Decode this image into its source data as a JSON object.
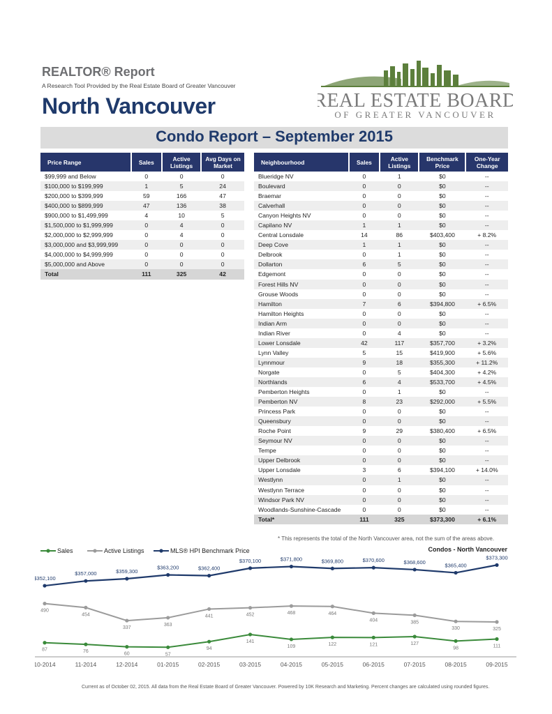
{
  "header": {
    "report_title": "REALTOR® Report",
    "report_subtitle": "A Research Tool Provided by the Real Estate Board of Greater Vancouver",
    "area": "North Vancouver",
    "banner": "Condo Report – September 2015",
    "logo_line1": "REAL ESTATE BOARD",
    "logo_line2": "OF GREATER VANCOUVER"
  },
  "colors": {
    "navy": "#1f3a6b",
    "header_bg": "#27366b",
    "green": "#3a8a3a",
    "gray": "#9b9b9b"
  },
  "price_table": {
    "headers": [
      "Price Range",
      "Sales",
      "Active Listings",
      "Avg Days on Market"
    ],
    "rows": [
      [
        "$99,999 and Below",
        "0",
        "0",
        "0"
      ],
      [
        "$100,000 to $199,999",
        "1",
        "5",
        "24"
      ],
      [
        "$200,000 to $399,999",
        "59",
        "166",
        "47"
      ],
      [
        "$400,000 to $899,999",
        "47",
        "136",
        "38"
      ],
      [
        "$900,000 to $1,499,999",
        "4",
        "10",
        "5"
      ],
      [
        "$1,500,000 to $1,999,999",
        "0",
        "4",
        "0"
      ],
      [
        "$2,000,000 to $2,999,999",
        "0",
        "4",
        "0"
      ],
      [
        "$3,000,000 and $3,999,999",
        "0",
        "0",
        "0"
      ],
      [
        "$4,000,000 to $4,999,999",
        "0",
        "0",
        "0"
      ],
      [
        "$5,000,000 and Above",
        "0",
        "0",
        "0"
      ]
    ],
    "total": [
      "Total",
      "111",
      "325",
      "42"
    ]
  },
  "nb_table": {
    "headers": [
      "Neighbourhood",
      "Sales",
      "Active Listings",
      "Benchmark Price",
      "One-Year Change"
    ],
    "rows": [
      [
        "Blueridge NV",
        "0",
        "1",
        "$0",
        "--"
      ],
      [
        "Boulevard",
        "0",
        "0",
        "$0",
        "--"
      ],
      [
        "Braemar",
        "0",
        "0",
        "$0",
        "--"
      ],
      [
        "Calverhall",
        "0",
        "0",
        "$0",
        "--"
      ],
      [
        "Canyon Heights NV",
        "0",
        "0",
        "$0",
        "--"
      ],
      [
        "Capilano NV",
        "1",
        "1",
        "$0",
        "--"
      ],
      [
        "Central Lonsdale",
        "14",
        "86",
        "$403,400",
        "+ 8.2%"
      ],
      [
        "Deep Cove",
        "1",
        "1",
        "$0",
        "--"
      ],
      [
        "Delbrook",
        "0",
        "1",
        "$0",
        "--"
      ],
      [
        "Dollarton",
        "6",
        "5",
        "$0",
        "--"
      ],
      [
        "Edgemont",
        "0",
        "0",
        "$0",
        "--"
      ],
      [
        "Forest Hills NV",
        "0",
        "0",
        "$0",
        "--"
      ],
      [
        "Grouse Woods",
        "0",
        "0",
        "$0",
        "--"
      ],
      [
        "Hamilton",
        "7",
        "6",
        "$394,800",
        "+ 6.5%"
      ],
      [
        "Hamilton Heights",
        "0",
        "0",
        "$0",
        "--"
      ],
      [
        "Indian Arm",
        "0",
        "0",
        "$0",
        "--"
      ],
      [
        "Indian River",
        "0",
        "4",
        "$0",
        "--"
      ],
      [
        "Lower Lonsdale",
        "42",
        "117",
        "$357,700",
        "+ 3.2%"
      ],
      [
        "Lynn Valley",
        "5",
        "15",
        "$419,900",
        "+ 5.6%"
      ],
      [
        "Lynnmour",
        "9",
        "18",
        "$355,300",
        "+ 11.2%"
      ],
      [
        "Norgate",
        "0",
        "5",
        "$404,300",
        "+ 4.2%"
      ],
      [
        "Northlands",
        "6",
        "4",
        "$533,700",
        "+ 4.5%"
      ],
      [
        "Pemberton Heights",
        "0",
        "1",
        "$0",
        "--"
      ],
      [
        "Pemberton NV",
        "8",
        "23",
        "$292,000",
        "+ 5.5%"
      ],
      [
        "Princess Park",
        "0",
        "0",
        "$0",
        "--"
      ],
      [
        "Queensbury",
        "0",
        "0",
        "$0",
        "--"
      ],
      [
        "Roche Point",
        "9",
        "29",
        "$380,400",
        "+ 6.5%"
      ],
      [
        "Seymour NV",
        "0",
        "0",
        "$0",
        "--"
      ],
      [
        "Tempe",
        "0",
        "0",
        "$0",
        "--"
      ],
      [
        "Upper Delbrook",
        "0",
        "0",
        "$0",
        "--"
      ],
      [
        "Upper Lonsdale",
        "3",
        "6",
        "$394,100",
        "+ 14.0%"
      ],
      [
        "Westlynn",
        "0",
        "1",
        "$0",
        "--"
      ],
      [
        "Westlynn Terrace",
        "0",
        "0",
        "$0",
        "--"
      ],
      [
        "Windsor Park NV",
        "0",
        "0",
        "$0",
        "--"
      ],
      [
        "Woodlands-Sunshine-Cascade",
        "0",
        "0",
        "$0",
        "--"
      ]
    ],
    "total": [
      "Total*",
      "111",
      "325",
      "$373,300",
      "+ 6.1%"
    ]
  },
  "footnote": "* This represents the total of the North Vancouver area, not the sum of the areas above.",
  "chart_data": {
    "type": "line",
    "title": "Condos - North Vancouver",
    "categories": [
      "10-2014",
      "11-2014",
      "12-2014",
      "01-2015",
      "02-2015",
      "03-2015",
      "04-2015",
      "05-2015",
      "06-2015",
      "07-2015",
      "08-2015",
      "09-2015"
    ],
    "legend_position": "top-left",
    "series": [
      {
        "name": "Sales",
        "color": "#3a8a3a",
        "values": [
          87,
          76,
          60,
          57,
          94,
          141,
          109,
          122,
          121,
          127,
          98,
          111
        ],
        "labels": [
          "87",
          "76",
          "60",
          "57",
          "94",
          "141",
          "109",
          "122",
          "121",
          "127",
          "98",
          "111"
        ]
      },
      {
        "name": "Active Listings",
        "color": "#9b9b9b",
        "values": [
          490,
          454,
          337,
          363,
          441,
          452,
          468,
          464,
          404,
          385,
          330,
          325
        ],
        "labels": [
          "490",
          "454",
          "337",
          "363",
          "441",
          "452",
          "468",
          "464",
          "404",
          "385",
          "330",
          "325"
        ]
      },
      {
        "name": "MLS® HPI Benchmark Price",
        "color": "#1f3a6b",
        "values": [
          352100,
          357000,
          359300,
          363200,
          362400,
          370100,
          371800,
          369800,
          370600,
          368600,
          365400,
          373300
        ],
        "labels": [
          "$352,100",
          "$357,000",
          "$359,300",
          "$363,200",
          "$362,400",
          "$370,100",
          "$371,800",
          "$369,800",
          "$370,600",
          "$368,600",
          "$365,400",
          "$373,300"
        ]
      }
    ]
  },
  "footer": "Current as of October 02, 2015. All data from the Real Estate Board of Greater Vancouver. Powered by 10K Research and Marketing. Percent changes are calculated using rounded figures."
}
